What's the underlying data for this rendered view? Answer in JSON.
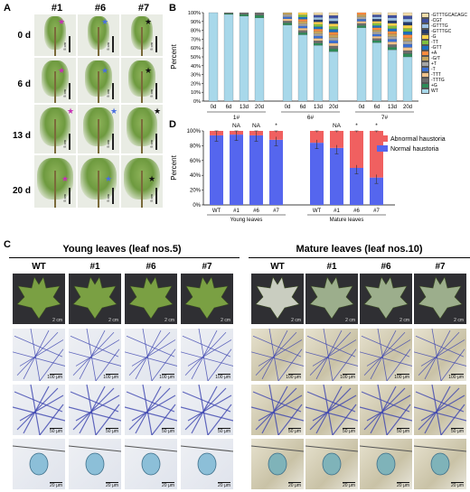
{
  "panels": {
    "a": "A",
    "b": "B",
    "c": "C",
    "d": "D"
  },
  "panel_a": {
    "columns": [
      "#1",
      "#6",
      "#7"
    ],
    "rows": [
      "0 d",
      "6 d",
      "13 d",
      "20 d"
    ],
    "scale_label": "5 cm",
    "star_colors": {
      "#1": "#c62fb4",
      "#6": "#4a6fe0",
      "#7": "#111111"
    }
  },
  "panel_c": {
    "young_title": "Young leaves (leaf nos.5)",
    "mature_title": "Mature leaves (leaf nos.10)",
    "columns": [
      "WT",
      "#1",
      "#6",
      "#7"
    ],
    "scale_labels": {
      "leaf": "2 cm",
      "row2": "100 μm",
      "row3": "50 μm",
      "row4": "20 μm"
    }
  },
  "chart_data": [
    {
      "type": "bar",
      "panel": "B",
      "stacked": true,
      "ylabel": "Percent",
      "ylim": [
        0,
        100
      ],
      "ytick_labels": [
        "0%",
        "10%",
        "20%",
        "30%",
        "40%",
        "50%",
        "60%",
        "70%",
        "80%",
        "90%",
        "100%"
      ],
      "groups": [
        {
          "name": "1#",
          "categories": [
            "0d",
            "6d",
            "13d",
            "20d"
          ]
        },
        {
          "name": "6#",
          "categories": [
            "0d",
            "6d",
            "13d",
            "20d"
          ]
        },
        {
          "name": "7#",
          "categories": [
            "0d",
            "6d",
            "13d",
            "20d"
          ]
        }
      ],
      "legend": [
        "-GTTTGCACAGC",
        "-CGT",
        "-GTTTG",
        "-GTTTGC",
        "-G",
        "-TT",
        "-GTT",
        "+A",
        "-G/T",
        "+T",
        "-T",
        "-TTT",
        "-TTTG",
        "+G",
        "WT"
      ],
      "series_colors": [
        "#f2dca8",
        "#3f4fa0",
        "#9ec3e6",
        "#243a6b",
        "#ffd24a",
        "#7fbf3f",
        "#1b6fc0",
        "#ff8a3d",
        "#c5a45a",
        "#a5a5a5",
        "#3b6fd4",
        "#f2c28a",
        "#6d6d6d",
        "#2e8b57",
        "#a8d8ea"
      ],
      "wt_percent": {
        "1#": [
          100,
          98,
          96,
          94
        ],
        "6#": [
          86,
          75,
          63,
          56
        ],
        "7#": [
          83,
          66,
          58,
          50
        ]
      }
    },
    {
      "type": "bar",
      "panel": "D",
      "stacked": true,
      "ylabel": "Percent",
      "ylim": [
        0,
        100
      ],
      "ytick_labels": [
        "0%",
        "20%",
        "40%",
        "60%",
        "80%",
        "100%"
      ],
      "groups": [
        {
          "name": "Young leaves",
          "categories": [
            "WT",
            "#1",
            "#6",
            "#7"
          ]
        },
        {
          "name": "Mature leaves",
          "categories": [
            "WT",
            "#1",
            "#6",
            "#7"
          ]
        }
      ],
      "series": [
        {
          "name": "Abnormal haustoria",
          "color": "#f06060",
          "values": [
            6,
            5,
            6,
            12,
            16,
            23,
            50,
            63
          ]
        },
        {
          "name": "Normal haustoria",
          "color": "#5566ee",
          "values": [
            94,
            95,
            94,
            88,
            84,
            77,
            50,
            37
          ]
        }
      ],
      "annotations": [
        "",
        "NA",
        "NA",
        "*",
        "",
        "NA",
        "*",
        "*"
      ]
    }
  ]
}
